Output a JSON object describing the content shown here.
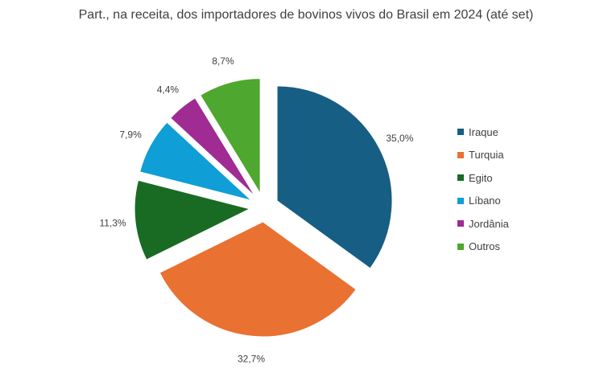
{
  "chart_data": {
    "type": "pie",
    "title": "Part., na receita, dos importadores de bovinos vivos do Brasil em 2024 (até set)",
    "legend_position": "right",
    "slices": [
      {
        "name": "Iraque",
        "value": 35.0,
        "label": "35,0%",
        "color": "#165E83"
      },
      {
        "name": "Turquia",
        "value": 32.7,
        "label": "32,7%",
        "color": "#E97132"
      },
      {
        "name": "Egito",
        "value": 11.3,
        "label": "11,3%",
        "color": "#196B24"
      },
      {
        "name": "Líbano",
        "value": 7.9,
        "label": "7,9%",
        "color": "#0F9ED5"
      },
      {
        "name": "Jordânia",
        "value": 4.4,
        "label": "4,4%",
        "color": "#A02B93"
      },
      {
        "name": "Outros",
        "value": 8.7,
        "label": "8,7%",
        "color": "#4EA72E"
      }
    ]
  }
}
